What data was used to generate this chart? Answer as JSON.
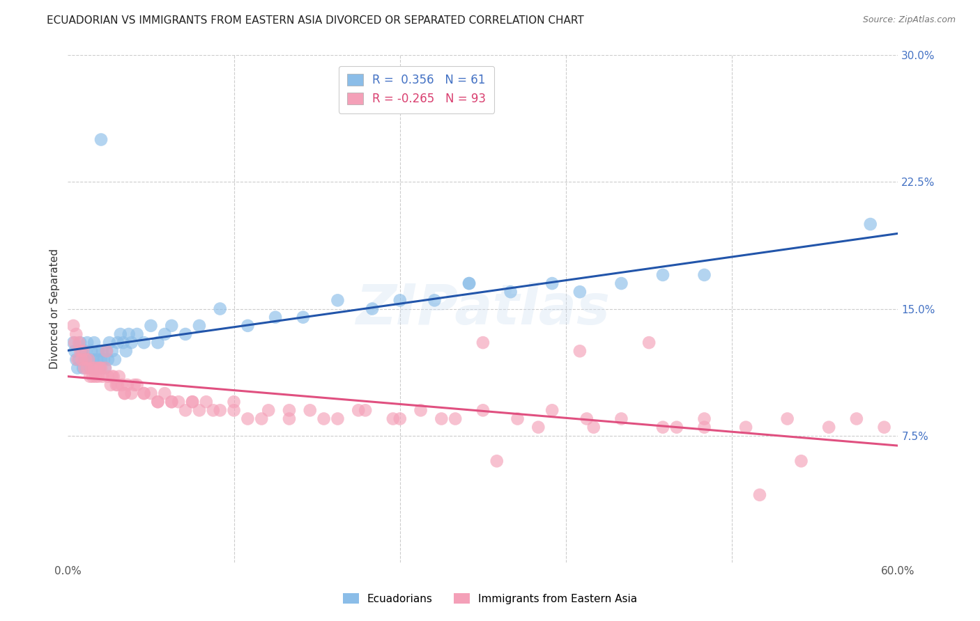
{
  "title": "ECUADORIAN VS IMMIGRANTS FROM EASTERN ASIA DIVORCED OR SEPARATED CORRELATION CHART",
  "source": "Source: ZipAtlas.com",
  "ylabel": "Divorced or Separated",
  "xlim": [
    0.0,
    0.6
  ],
  "ylim": [
    0.0,
    0.3
  ],
  "xticks": [
    0.0,
    0.12,
    0.24,
    0.36,
    0.48,
    0.6
  ],
  "xticklabels": [
    "0.0%",
    "",
    "",
    "",
    "",
    "60.0%"
  ],
  "yticks_right": [
    0.075,
    0.15,
    0.225,
    0.3
  ],
  "ytick_right_labels": [
    "7.5%",
    "15.0%",
    "22.5%",
    "30.0%"
  ],
  "blue_R": 0.356,
  "blue_N": 61,
  "pink_R": -0.265,
  "pink_N": 93,
  "blue_color": "#8BBDE8",
  "pink_color": "#F4A0B8",
  "blue_line_color": "#2255AA",
  "pink_line_color": "#E05080",
  "watermark": "ZIPatlas",
  "legend_label_blue": "Ecuadorians",
  "legend_label_pink": "Immigrants from Eastern Asia",
  "blue_x": [
    0.004,
    0.005,
    0.006,
    0.007,
    0.008,
    0.009,
    0.01,
    0.011,
    0.012,
    0.013,
    0.014,
    0.015,
    0.016,
    0.017,
    0.018,
    0.019,
    0.02,
    0.021,
    0.022,
    0.023,
    0.024,
    0.025,
    0.026,
    0.027,
    0.028,
    0.029,
    0.03,
    0.032,
    0.034,
    0.036,
    0.038,
    0.04,
    0.042,
    0.044,
    0.046,
    0.05,
    0.055,
    0.06,
    0.065,
    0.07,
    0.075,
    0.085,
    0.095,
    0.11,
    0.13,
    0.15,
    0.17,
    0.195,
    0.22,
    0.24,
    0.265,
    0.29,
    0.32,
    0.35,
    0.37,
    0.4,
    0.43,
    0.46,
    0.024,
    0.29,
    0.58
  ],
  "blue_y": [
    0.13,
    0.125,
    0.12,
    0.115,
    0.12,
    0.13,
    0.125,
    0.115,
    0.12,
    0.125,
    0.13,
    0.12,
    0.115,
    0.125,
    0.12,
    0.13,
    0.115,
    0.12,
    0.125,
    0.115,
    0.12,
    0.125,
    0.12,
    0.115,
    0.125,
    0.12,
    0.13,
    0.125,
    0.12,
    0.13,
    0.135,
    0.13,
    0.125,
    0.135,
    0.13,
    0.135,
    0.13,
    0.14,
    0.13,
    0.135,
    0.14,
    0.135,
    0.14,
    0.15,
    0.14,
    0.145,
    0.145,
    0.155,
    0.15,
    0.155,
    0.155,
    0.165,
    0.16,
    0.165,
    0.16,
    0.165,
    0.17,
    0.17,
    0.25,
    0.165,
    0.2
  ],
  "pink_x": [
    0.004,
    0.005,
    0.006,
    0.007,
    0.008,
    0.009,
    0.01,
    0.011,
    0.012,
    0.013,
    0.014,
    0.015,
    0.016,
    0.017,
    0.018,
    0.019,
    0.02,
    0.021,
    0.022,
    0.023,
    0.025,
    0.027,
    0.029,
    0.031,
    0.033,
    0.035,
    0.037,
    0.039,
    0.041,
    0.043,
    0.046,
    0.05,
    0.055,
    0.06,
    0.065,
    0.07,
    0.075,
    0.08,
    0.085,
    0.09,
    0.095,
    0.1,
    0.11,
    0.12,
    0.13,
    0.145,
    0.16,
    0.175,
    0.195,
    0.215,
    0.235,
    0.255,
    0.28,
    0.3,
    0.325,
    0.35,
    0.375,
    0.4,
    0.43,
    0.46,
    0.49,
    0.52,
    0.55,
    0.57,
    0.59,
    0.024,
    0.036,
    0.028,
    0.032,
    0.041,
    0.048,
    0.055,
    0.065,
    0.075,
    0.09,
    0.105,
    0.12,
    0.14,
    0.16,
    0.185,
    0.21,
    0.24,
    0.27,
    0.3,
    0.34,
    0.38,
    0.42,
    0.46,
    0.31,
    0.37,
    0.44,
    0.5,
    0.53
  ],
  "pink_y": [
    0.14,
    0.13,
    0.135,
    0.12,
    0.13,
    0.125,
    0.12,
    0.125,
    0.115,
    0.12,
    0.115,
    0.12,
    0.11,
    0.115,
    0.11,
    0.115,
    0.11,
    0.115,
    0.11,
    0.115,
    0.11,
    0.115,
    0.11,
    0.105,
    0.11,
    0.105,
    0.11,
    0.105,
    0.1,
    0.105,
    0.1,
    0.105,
    0.1,
    0.1,
    0.095,
    0.1,
    0.095,
    0.095,
    0.09,
    0.095,
    0.09,
    0.095,
    0.09,
    0.095,
    0.085,
    0.09,
    0.085,
    0.09,
    0.085,
    0.09,
    0.085,
    0.09,
    0.085,
    0.09,
    0.085,
    0.09,
    0.085,
    0.085,
    0.08,
    0.085,
    0.08,
    0.085,
    0.08,
    0.085,
    0.08,
    0.115,
    0.105,
    0.125,
    0.11,
    0.1,
    0.105,
    0.1,
    0.095,
    0.095,
    0.095,
    0.09,
    0.09,
    0.085,
    0.09,
    0.085,
    0.09,
    0.085,
    0.085,
    0.13,
    0.08,
    0.08,
    0.13,
    0.08,
    0.06,
    0.125,
    0.08,
    0.04,
    0.06
  ]
}
